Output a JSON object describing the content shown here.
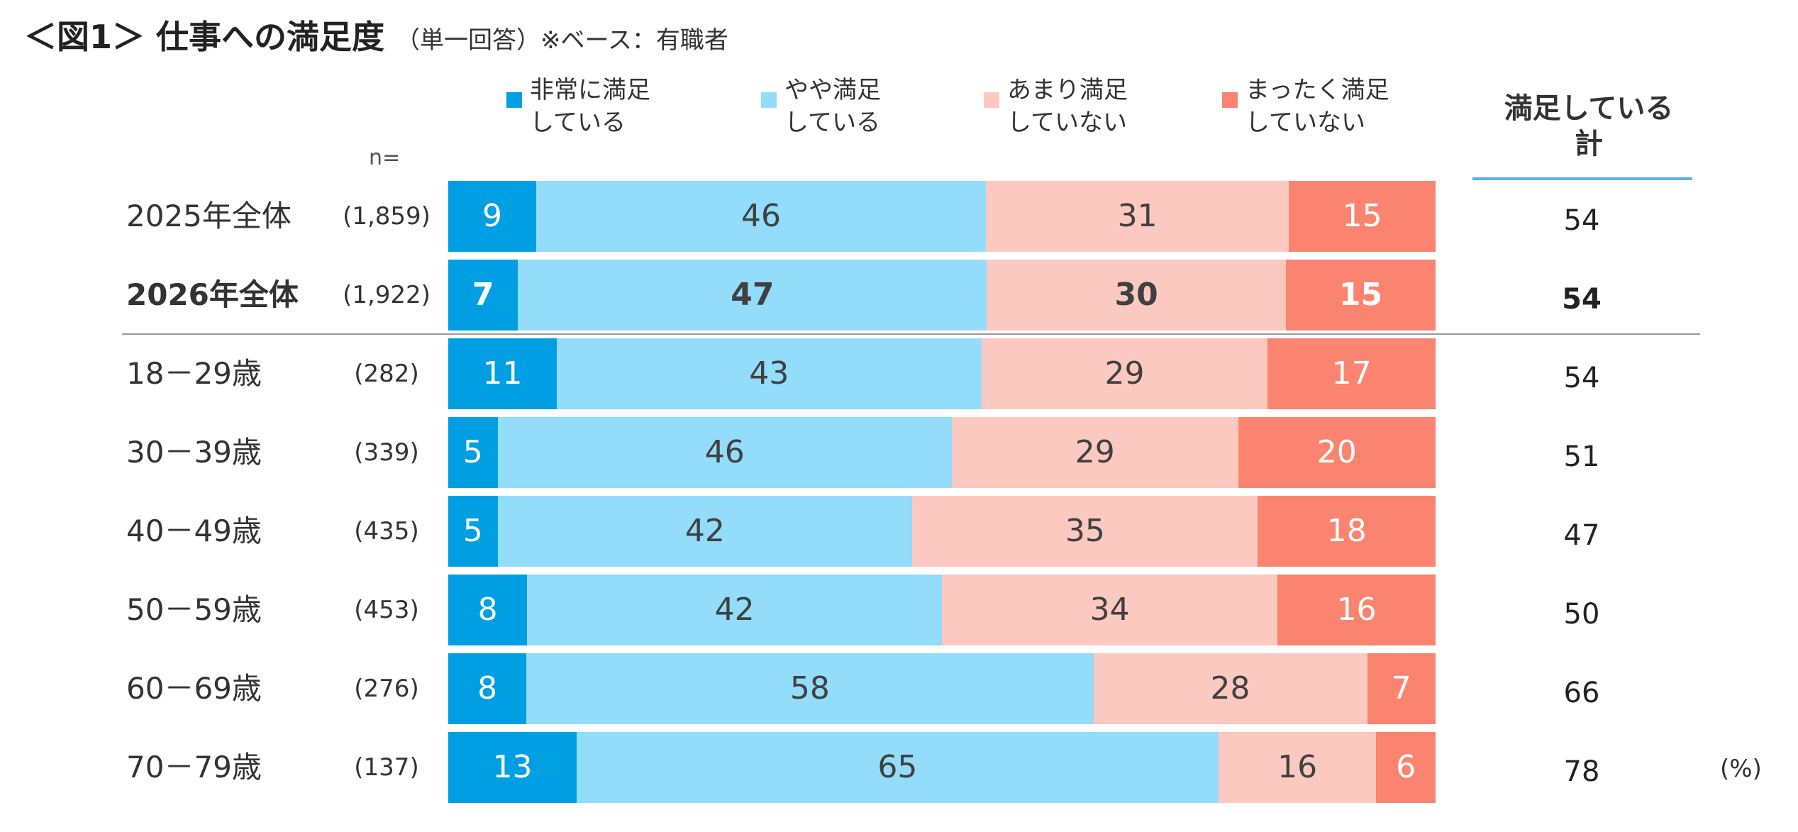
{
  "title": "＜図1＞ 仕事への満足度",
  "subtitle": "（単一回答）※ベース：有職者",
  "n_label": "n=",
  "summary_header": [
    "満足している",
    "計"
  ],
  "unit": "(%)",
  "colors": {
    "very_satisfied": "#009fe3",
    "somewhat_satisfied": "#93dcfa",
    "somewhat_dissatisfied": "#fcc9c0",
    "very_dissatisfied": "#fa8470",
    "separator": "#9a9a9a",
    "summary_underline": "#5ab4e5"
  },
  "legend": [
    {
      "key": "very_satisfied",
      "lines": [
        "非常に満足",
        "している"
      ]
    },
    {
      "key": "somewhat_satisfied",
      "lines": [
        "やや満足",
        "している"
      ]
    },
    {
      "key": "somewhat_dissatisfied",
      "lines": [
        "あまり満足",
        "していない"
      ]
    },
    {
      "key": "very_dissatisfied",
      "lines": [
        "まったく満足",
        "していない"
      ]
    }
  ],
  "chart_data": {
    "type": "bar",
    "orientation": "horizontal",
    "stacked": true,
    "percent": true,
    "title": "＜図1＞ 仕事への満足度",
    "xlim": [
      0,
      100
    ],
    "categories": [
      "2025年全体",
      "2026年全体",
      "18－29歳",
      "30－39歳",
      "40－49歳",
      "50－59歳",
      "60－69歳",
      "70－79歳"
    ],
    "n": [
      "(1,859)",
      "(1,922)",
      "(282)",
      "(339)",
      "(435)",
      "(453)",
      "(276)",
      "(137)"
    ],
    "emphasized_category": "2026年全体",
    "series": [
      {
        "name": "非常に満足している",
        "key": "very_satisfied",
        "values": [
          9,
          7,
          11,
          5,
          5,
          8,
          8,
          13
        ]
      },
      {
        "name": "やや満足している",
        "key": "somewhat_satisfied",
        "values": [
          46,
          47,
          43,
          46,
          42,
          42,
          58,
          65
        ]
      },
      {
        "name": "あまり満足していない",
        "key": "somewhat_dissatisfied",
        "values": [
          31,
          30,
          29,
          29,
          35,
          34,
          28,
          16
        ]
      },
      {
        "name": "まったく満足していない",
        "key": "very_dissatisfied",
        "values": [
          15,
          15,
          17,
          20,
          18,
          16,
          7,
          6
        ]
      }
    ],
    "satisfied_total": {
      "label": "満足している計",
      "values": [
        54,
        54,
        54,
        51,
        47,
        50,
        66,
        78
      ]
    }
  }
}
